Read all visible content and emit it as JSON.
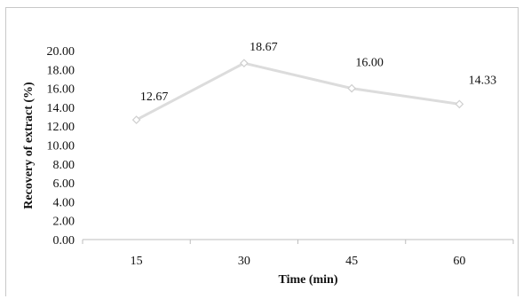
{
  "chart_data": {
    "type": "line",
    "x": [
      "15",
      "30",
      "45",
      "60"
    ],
    "series": [
      {
        "values": [
          12.67,
          18.67,
          16.0,
          14.33
        ],
        "color": "#dcdcdc",
        "labels": [
          "12.67",
          "18.67",
          "16.00",
          "14.33"
        ]
      }
    ],
    "xlabel": "Time (min)",
    "ylabel": "Recovery of extract (%)",
    "ylim": [
      0,
      20
    ],
    "yticks": [
      "0.00",
      "2.00",
      "4.00",
      "6.00",
      "8.00",
      "10.00",
      "12.00",
      "14.00",
      "16.00",
      "18.00",
      "20.00"
    ],
    "grid": false,
    "legend": "none"
  }
}
